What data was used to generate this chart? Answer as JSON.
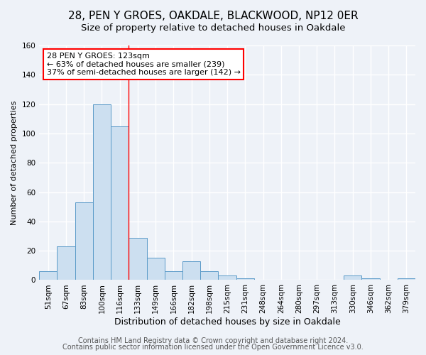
{
  "title": "28, PEN Y GROES, OAKDALE, BLACKWOOD, NP12 0ER",
  "subtitle": "Size of property relative to detached houses in Oakdale",
  "xlabel": "Distribution of detached houses by size in Oakdale",
  "ylabel": "Number of detached properties",
  "bar_labels": [
    "51sqm",
    "67sqm",
    "83sqm",
    "100sqm",
    "116sqm",
    "133sqm",
    "149sqm",
    "166sqm",
    "182sqm",
    "198sqm",
    "215sqm",
    "231sqm",
    "248sqm",
    "264sqm",
    "280sqm",
    "297sqm",
    "313sqm",
    "330sqm",
    "346sqm",
    "362sqm",
    "379sqm"
  ],
  "bar_values": [
    6,
    23,
    53,
    120,
    105,
    29,
    15,
    6,
    13,
    6,
    3,
    1,
    0,
    0,
    0,
    0,
    0,
    3,
    1,
    0,
    1
  ],
  "bar_color": "#ccdff0",
  "bar_edge_color": "#5a9ac8",
  "ylim": [
    0,
    160
  ],
  "yticks": [
    0,
    20,
    40,
    60,
    80,
    100,
    120,
    140,
    160
  ],
  "vline_x_index": 4.5,
  "vline_color": "red",
  "annotation_title": "28 PEN Y GROES: 123sqm",
  "annotation_line1": "← 63% of detached houses are smaller (239)",
  "annotation_line2": "37% of semi-detached houses are larger (142) →",
  "annotation_box_color": "white",
  "annotation_box_edge": "red",
  "footer1": "Contains HM Land Registry data © Crown copyright and database right 2024.",
  "footer2": "Contains public sector information licensed under the Open Government Licence v3.0.",
  "background_color": "#eef2f8",
  "grid_color": "white",
  "title_fontsize": 11,
  "subtitle_fontsize": 9.5,
  "xlabel_fontsize": 9,
  "ylabel_fontsize": 8,
  "tick_fontsize": 7.5,
  "annotation_fontsize": 8,
  "footer_fontsize": 7
}
